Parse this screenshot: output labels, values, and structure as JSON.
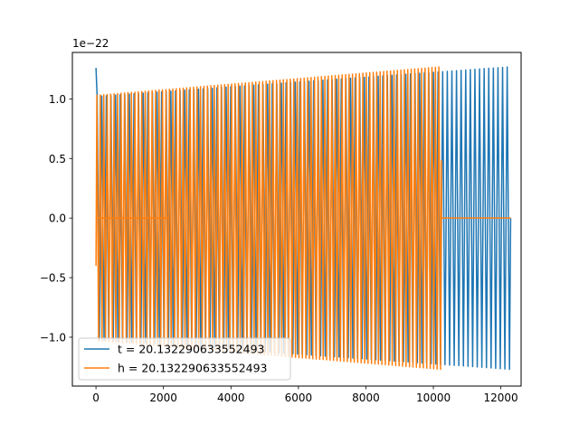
{
  "chart_data": {
    "type": "line",
    "title": "",
    "xlabel": "",
    "ylabel": "",
    "offset_text": "1e−22",
    "xlim": [
      -700,
      12600
    ],
    "ylim": [
      -1.41,
      1.39
    ],
    "y_scale_exponent": -22,
    "x_ticks": [
      0,
      2000,
      4000,
      6000,
      8000,
      10000,
      12000
    ],
    "x_tick_labels": [
      "0",
      "2000",
      "4000",
      "6000",
      "8000",
      "10000",
      "12000"
    ],
    "y_ticks": [
      -1.0,
      -0.5,
      0.0,
      0.5,
      1.0
    ],
    "y_tick_labels": [
      "−1.0",
      "−0.5",
      "0.0",
      "0.5",
      "1.0"
    ],
    "grid": false,
    "legend_position": "lower-left",
    "series": [
      {
        "name": "t = 20.132290633552493",
        "color": "#1f77b4",
        "x_range": [
          0,
          12290
        ],
        "envelope_start": 1.02,
        "envelope_end": 1.27,
        "initial_spike": 1.26,
        "cycles": 90
      },
      {
        "name": "h = 20.132290633552493",
        "color": "#ff7f0e",
        "x_range": [
          0,
          10240
        ],
        "envelope_start": 1.03,
        "envelope_end": 1.27,
        "flat_segment": [
          60,
          2160
        ],
        "start_value": -0.4,
        "end_value": 0.48,
        "tail_x_range": [
          10240,
          12290
        ],
        "tail_value": 0.0,
        "cycles": 100
      }
    ]
  }
}
